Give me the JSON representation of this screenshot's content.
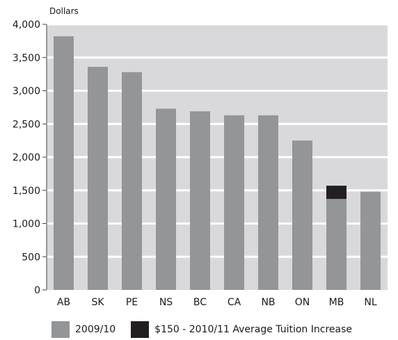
{
  "chart_data": {
    "type": "bar",
    "stacked": true,
    "ylabel": "Dollars",
    "ylim": [
      0,
      4000
    ],
    "yticks": [
      0,
      500,
      1000,
      1500,
      2000,
      2500,
      3000,
      3500,
      4000
    ],
    "ytick_labels": [
      "0",
      "500",
      "1,000",
      "1,500",
      "2,000",
      "2,500",
      "3,000",
      "3,500",
      "4,000"
    ],
    "grid": true,
    "legend_position": "bottom",
    "categories": [
      "AB",
      "SK",
      "PE",
      "NS",
      "BC",
      "CA",
      "NB",
      "ON",
      "MB",
      "NL"
    ],
    "series": [
      {
        "name": "2009/10",
        "color": "#939598",
        "values": [
          3820,
          3360,
          3280,
          2730,
          2690,
          2630,
          2630,
          2250,
          1370,
          1480
        ]
      },
      {
        "name": "$150 - 2010/11 Average Tuition Increase",
        "color": "#231f20",
        "values": [
          0,
          0,
          0,
          0,
          0,
          0,
          0,
          0,
          200,
          0
        ]
      }
    ],
    "plot_background": "#d9d9db",
    "grid_color": "#ffffff"
  }
}
